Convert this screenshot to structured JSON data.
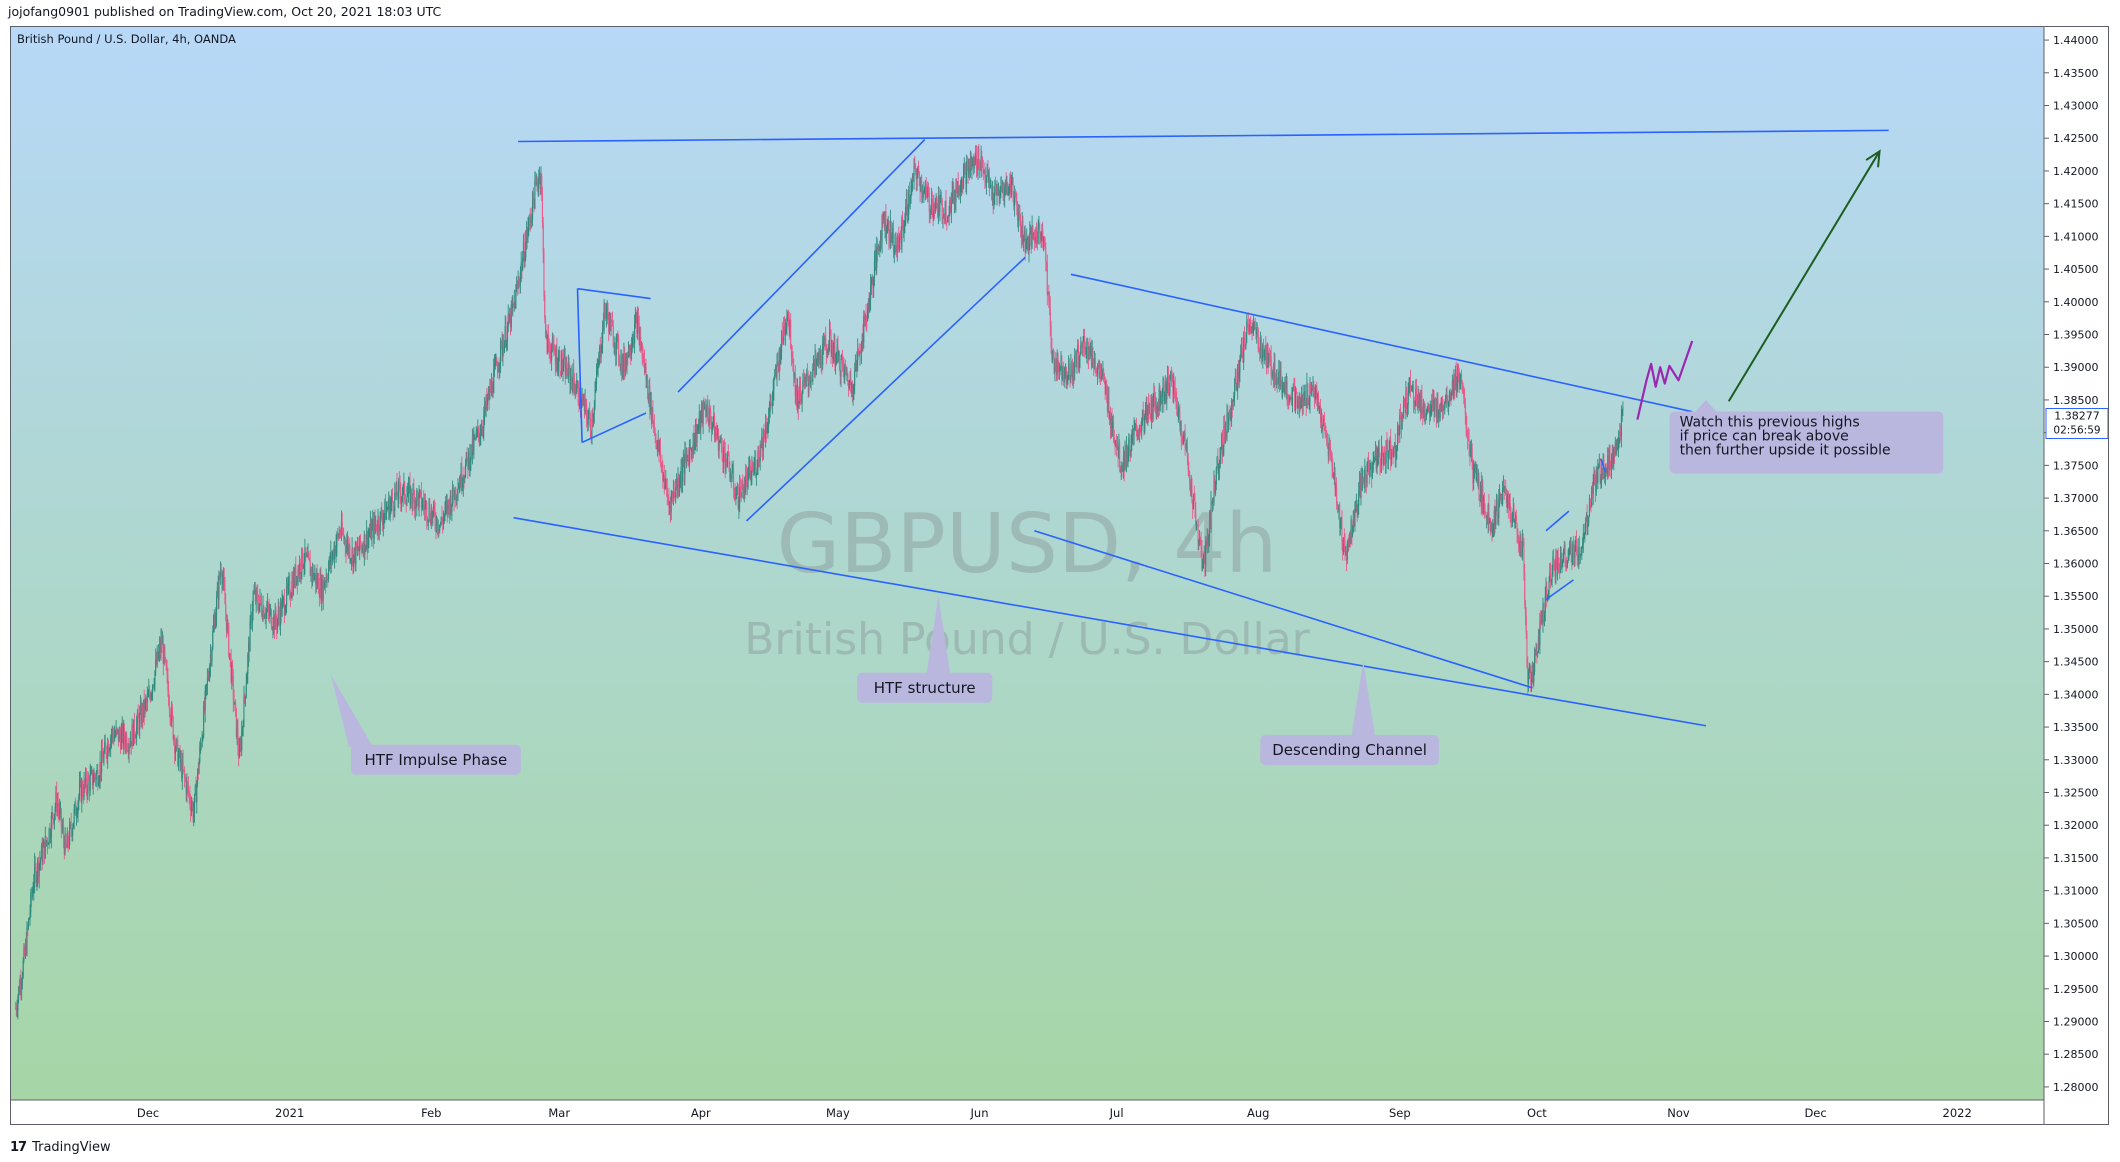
{
  "header": {
    "published_by": "jojofang0901 published on TradingView.com, Oct 20, 2021 18:03 UTC"
  },
  "footer": {
    "brand": "TradingView",
    "logo_glyph": "17"
  },
  "colors": {
    "bg_top": "#b7d8f7",
    "bg_bottom": "#a6d6a6",
    "up_candle": "#2e8b7e",
    "down_candle": "#e75a8a",
    "trend_line": "#2962ff",
    "purple_path": "#9c27b0",
    "target_arrow": "#1b5e20",
    "callout_bg": "#b9b7de",
    "price_tag_bg": "#ffffff"
  },
  "chart_data": {
    "type": "candlestick",
    "symbol_label": "British Pound / U.S. Dollar, 4h, OANDA",
    "watermark_symbol": "GBPUSD, 4h",
    "watermark_name": "British Pound / U.S. Dollar",
    "y_axis": {
      "min": 1.278,
      "max": 1.442,
      "ticks": [
        "1.28000",
        "1.28500",
        "1.29000",
        "1.29500",
        "1.30000",
        "1.30500",
        "1.31000",
        "1.31500",
        "1.32000",
        "1.32500",
        "1.33000",
        "1.33500",
        "1.34000",
        "1.34500",
        "1.35000",
        "1.35500",
        "1.36000",
        "1.36500",
        "1.37000",
        "1.37500",
        "1.38000",
        "1.38500",
        "1.39000",
        "1.39500",
        "1.40000",
        "1.40500",
        "1.41000",
        "1.41500",
        "1.42000",
        "1.42500",
        "1.43000",
        "1.43500",
        "1.44000"
      ]
    },
    "x_axis": {
      "start": "2020-11-01",
      "end": "2022-01-20",
      "labels": [
        {
          "date": "2020-12-01",
          "text": "Dec"
        },
        {
          "date": "2021-01-01",
          "text": "2021"
        },
        {
          "date": "2021-02-01",
          "text": "Feb"
        },
        {
          "date": "2021-03-01",
          "text": "Mar"
        },
        {
          "date": "2021-04-01",
          "text": "Apr"
        },
        {
          "date": "2021-05-01",
          "text": "May"
        },
        {
          "date": "2021-06-01",
          "text": "Jun"
        },
        {
          "date": "2021-07-01",
          "text": "Jul"
        },
        {
          "date": "2021-08-01",
          "text": "Aug"
        },
        {
          "date": "2021-09-01",
          "text": "Sep"
        },
        {
          "date": "2021-10-01",
          "text": "Oct"
        },
        {
          "date": "2021-11-01",
          "text": "Nov"
        },
        {
          "date": "2021-12-01",
          "text": "Dec"
        },
        {
          "date": "2022-01-01",
          "text": "2022"
        }
      ]
    },
    "current_price": {
      "value": "1.38277",
      "countdown": "02:56:59",
      "price": 1.38277
    },
    "price_path": [
      [
        "2020-11-02",
        1.292
      ],
      [
        "2020-11-04",
        1.3
      ],
      [
        "2020-11-06",
        1.312
      ],
      [
        "2020-11-09",
        1.318
      ],
      [
        "2020-11-11",
        1.324
      ],
      [
        "2020-11-13",
        1.316
      ],
      [
        "2020-11-16",
        1.325
      ],
      [
        "2020-11-20",
        1.328
      ],
      [
        "2020-11-23",
        1.334
      ],
      [
        "2020-11-27",
        1.333
      ],
      [
        "2020-12-01",
        1.339
      ],
      [
        "2020-12-04",
        1.348
      ],
      [
        "2020-12-07",
        1.332
      ],
      [
        "2020-12-11",
        1.322
      ],
      [
        "2020-12-14",
        1.342
      ],
      [
        "2020-12-17",
        1.36
      ],
      [
        "2020-12-21",
        1.33
      ],
      [
        "2020-12-24",
        1.355
      ],
      [
        "2020-12-29",
        1.351
      ],
      [
        "2021-01-04",
        1.361
      ],
      [
        "2021-01-08",
        1.356
      ],
      [
        "2021-01-12",
        1.365
      ],
      [
        "2021-01-15",
        1.361
      ],
      [
        "2021-01-20",
        1.366
      ],
      [
        "2021-01-25",
        1.371
      ],
      [
        "2021-01-29",
        1.37
      ],
      [
        "2021-02-03",
        1.366
      ],
      [
        "2021-02-08",
        1.374
      ],
      [
        "2021-02-12",
        1.381
      ],
      [
        "2021-02-16",
        1.392
      ],
      [
        "2021-02-19",
        1.399
      ],
      [
        "2021-02-24",
        1.418
      ],
      [
        "2021-02-25",
        1.42
      ],
      [
        "2021-02-26",
        1.394
      ],
      [
        "2021-03-01",
        1.391
      ],
      [
        "2021-03-04",
        1.388
      ],
      [
        "2021-03-08",
        1.381
      ],
      [
        "2021-03-11",
        1.399
      ],
      [
        "2021-03-15",
        1.39
      ],
      [
        "2021-03-18",
        1.397
      ],
      [
        "2021-03-22",
        1.38
      ],
      [
        "2021-03-25",
        1.369
      ],
      [
        "2021-03-30",
        1.378
      ],
      [
        "2021-04-02",
        1.384
      ],
      [
        "2021-04-07",
        1.375
      ],
      [
        "2021-04-09",
        1.37
      ],
      [
        "2021-04-13",
        1.375
      ],
      [
        "2021-04-16",
        1.383
      ],
      [
        "2021-04-20",
        1.399
      ],
      [
        "2021-04-22",
        1.385
      ],
      [
        "2021-04-26",
        1.39
      ],
      [
        "2021-04-29",
        1.394
      ],
      [
        "2021-05-04",
        1.387
      ],
      [
        "2021-05-07",
        1.397
      ],
      [
        "2021-05-11",
        1.413
      ],
      [
        "2021-05-14",
        1.408
      ],
      [
        "2021-05-18",
        1.42
      ],
      [
        "2021-05-21",
        1.415
      ],
      [
        "2021-05-25",
        1.414
      ],
      [
        "2021-05-28",
        1.419
      ],
      [
        "2021-06-01",
        1.422
      ],
      [
        "2021-06-04",
        1.416
      ],
      [
        "2021-06-08",
        1.418
      ],
      [
        "2021-06-11",
        1.409
      ],
      [
        "2021-06-15",
        1.411
      ],
      [
        "2021-06-17",
        1.391
      ],
      [
        "2021-06-21",
        1.389
      ],
      [
        "2021-06-24",
        1.394
      ],
      [
        "2021-06-28",
        1.388
      ],
      [
        "2021-07-02",
        1.375
      ],
      [
        "2021-07-06",
        1.381
      ],
      [
        "2021-07-09",
        1.384
      ],
      [
        "2021-07-13",
        1.388
      ],
      [
        "2021-07-16",
        1.378
      ],
      [
        "2021-07-20",
        1.359
      ],
      [
        "2021-07-23",
        1.375
      ],
      [
        "2021-07-27",
        1.387
      ],
      [
        "2021-07-30",
        1.397
      ],
      [
        "2021-08-03",
        1.391
      ],
      [
        "2021-08-06",
        1.388
      ],
      [
        "2021-08-10",
        1.384
      ],
      [
        "2021-08-13",
        1.387
      ],
      [
        "2021-08-17",
        1.376
      ],
      [
        "2021-08-20",
        1.361
      ],
      [
        "2021-08-24",
        1.373
      ],
      [
        "2021-08-27",
        1.376
      ],
      [
        "2021-08-31",
        1.378
      ],
      [
        "2021-09-03",
        1.387
      ],
      [
        "2021-09-07",
        1.383
      ],
      [
        "2021-09-10",
        1.384
      ],
      [
        "2021-09-14",
        1.389
      ],
      [
        "2021-09-17",
        1.374
      ],
      [
        "2021-09-21",
        1.366
      ],
      [
        "2021-09-24",
        1.371
      ],
      [
        "2021-09-28",
        1.362
      ],
      [
        "2021-09-29",
        1.342
      ],
      [
        "2021-09-30",
        1.343
      ],
      [
        "2021-10-04",
        1.359
      ],
      [
        "2021-10-07",
        1.361
      ],
      [
        "2021-10-11",
        1.362
      ],
      [
        "2021-10-13",
        1.371
      ],
      [
        "2021-10-15",
        1.374
      ],
      [
        "2021-10-18",
        1.377
      ],
      [
        "2021-10-20",
        1.38277
      ]
    ],
    "trend_lines": [
      {
        "name": "top-resistance",
        "p1": [
          "2021-02-20",
          1.4245
        ],
        "p2": [
          "2021-12-17",
          1.4262
        ]
      },
      {
        "name": "channel-upper",
        "p1": [
          "2021-06-21",
          1.4042
        ],
        "p2": [
          "2021-11-04",
          1.3832
        ]
      },
      {
        "name": "channel-lower",
        "p1": [
          "2021-02-19",
          1.367
        ],
        "p2": [
          "2021-11-07",
          1.3352
        ]
      },
      {
        "name": "inner-lower",
        "p1": [
          "2021-06-13",
          1.365
        ],
        "p2": [
          "2021-09-30",
          1.341
        ]
      },
      {
        "name": "rise-upper",
        "p1": [
          "2021-03-27",
          1.3862
        ],
        "p2": [
          "2021-05-20",
          1.4248
        ]
      },
      {
        "name": "rise-lower",
        "p1": [
          "2021-04-11",
          1.3665
        ],
        "p2": [
          "2021-06-11",
          1.4068
        ]
      },
      {
        "name": "flag-top",
        "p1": [
          "2021-03-05",
          1.402
        ],
        "p2": [
          "2021-03-21",
          1.4005
        ]
      },
      {
        "name": "flag-side",
        "p1": [
          "2021-03-05",
          1.402
        ],
        "p2": [
          "2021-03-06",
          1.3785
        ]
      },
      {
        "name": "flag-bottom",
        "p1": [
          "2021-03-06",
          1.3785
        ],
        "p2": [
          "2021-03-20",
          1.383
        ]
      },
      {
        "name": "wedge-upper",
        "p1": [
          "2021-10-03",
          1.365
        ],
        "p2": [
          "2021-10-08",
          1.368
        ]
      },
      {
        "name": "wedge-lower",
        "p1": [
          "2021-10-03",
          1.3545
        ],
        "p2": [
          "2021-10-09",
          1.3575
        ]
      },
      {
        "name": "mini-flag",
        "p1": [
          "2021-10-15",
          1.376
        ],
        "p2": [
          "2021-10-16",
          1.374
        ]
      }
    ],
    "projection_path": [
      [
        "2021-10-23",
        1.382
      ],
      [
        "2021-10-25",
        1.388
      ],
      [
        "2021-10-26",
        1.3905
      ],
      [
        "2021-10-27",
        1.387
      ],
      [
        "2021-10-28",
        1.39
      ],
      [
        "2021-10-29",
        1.3875
      ],
      [
        "2021-10-30",
        1.3902
      ],
      [
        "2021-11-01",
        1.388
      ],
      [
        "2021-11-04",
        1.394
      ]
    ],
    "target_arrow": {
      "from": [
        "2021-11-12",
        1.3848
      ],
      "to": [
        "2021-12-15",
        1.423
      ]
    },
    "annotations": [
      {
        "text": "HTF Impulse Phase",
        "box": {
          "date": "2021-02-02",
          "price": 1.33
        },
        "tail": [
          "2021-01-10",
          1.343
        ]
      },
      {
        "text": "HTF structure",
        "box": {
          "date": "2021-05-20",
          "price": 1.341
        },
        "tail": [
          "2021-05-23",
          1.355
        ]
      },
      {
        "text": "Descending Channel",
        "box": {
          "date": "2021-08-21",
          "price": 1.3315
        },
        "tail": [
          "2021-08-24",
          1.345
        ]
      },
      {
        "text": "Watch this previous highs\nif price can break above\nthen further upside it possible",
        "box": {
          "date": "2021-11-29",
          "price": 1.3785
        },
        "tail": [
          "2021-11-07",
          1.385
        ]
      }
    ]
  }
}
